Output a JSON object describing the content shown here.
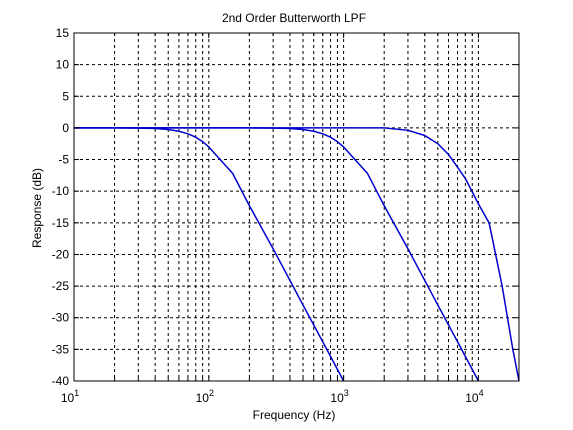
{
  "chart_data": {
    "type": "line",
    "title": "2nd Order Butterworth LPF",
    "xlabel": "Frequency (Hz)",
    "ylabel": "Response (dB)",
    "x_scale": "log",
    "xlim": [
      10,
      20000
    ],
    "ylim": [
      -40,
      15
    ],
    "grid": true,
    "grid_style": "dashed",
    "x_ticks": [
      {
        "base": "10",
        "exp": "1",
        "value": 10
      },
      {
        "base": "10",
        "exp": "2",
        "value": 100
      },
      {
        "base": "10",
        "exp": "3",
        "value": 1000
      },
      {
        "base": "10",
        "exp": "4",
        "value": 10000
      }
    ],
    "y_ticks": [
      "15",
      "10",
      "5",
      "0",
      "-5",
      "-10",
      "-15",
      "-20",
      "-25",
      "-30",
      "-35",
      "-40"
    ],
    "line_color": "#0000cc",
    "series": [
      {
        "filter_order": 2,
        "cutoff_hz": 100,
        "x": [
          10,
          20,
          30,
          40,
          50,
          60,
          70,
          80,
          90,
          100,
          150,
          200,
          300,
          500,
          700,
          1000
        ],
        "y": [
          0.0,
          0.0,
          -0.03,
          -0.1,
          -0.26,
          -0.53,
          -0.93,
          -1.47,
          -2.17,
          -3.01,
          -7.16,
          -12.3,
          -19.1,
          -28.0,
          -33.8,
          -40.0
        ]
      },
      {
        "filter_order": 2,
        "cutoff_hz": 1000,
        "x": [
          10,
          100,
          200,
          300,
          400,
          500,
          600,
          700,
          800,
          900,
          1000,
          1500,
          2000,
          3000,
          5000,
          7000,
          10000
        ],
        "y": [
          0.0,
          0.0,
          0.0,
          -0.03,
          -0.1,
          -0.26,
          -0.53,
          -0.93,
          -1.47,
          -2.17,
          -3.01,
          -7.16,
          -12.3,
          -19.1,
          -28.0,
          -33.8,
          -40.0
        ]
      },
      {
        "filter_order": 2,
        "cutoff_hz": 5500,
        "x": [
          10,
          1000,
          2000,
          3000,
          4000,
          5000,
          6000,
          7000,
          8000,
          10000,
          12000,
          15000,
          18000,
          20000
        ],
        "y": [
          0.0,
          0.0,
          0.0,
          -0.38,
          -1.2,
          -2.5,
          -4.2,
          -6.2,
          -8.0,
          -12.0,
          -15.0,
          -25.0,
          -35.0,
          -40.0
        ]
      }
    ]
  }
}
